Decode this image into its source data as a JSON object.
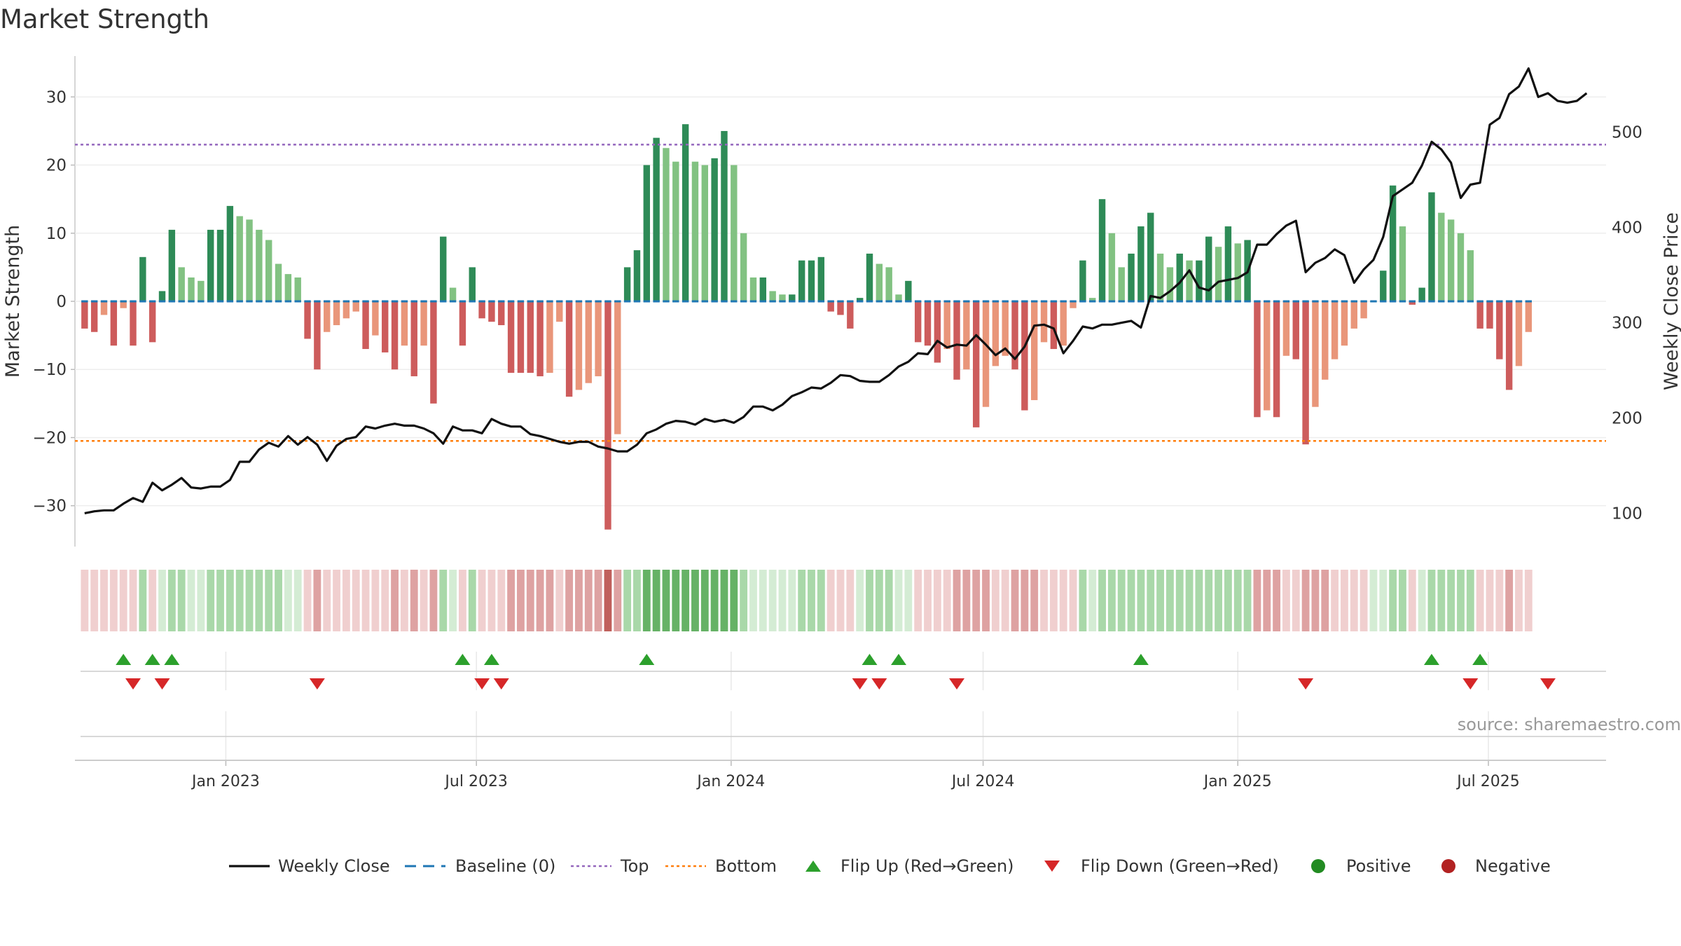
{
  "title": "Market Strength",
  "source": "source: sharemaestro.com",
  "chart_data": {
    "type": "bar",
    "ylabel_left": "Market Strength",
    "ylabel_right": "Weekly Close Price",
    "ylim_left": [
      -36,
      36
    ],
    "ylim_right": [
      65,
      580
    ],
    "left_ticks": [
      "−30",
      "−20",
      "−10",
      "0",
      "10",
      "20",
      "30"
    ],
    "left_tick_values": [
      -30,
      -20,
      -10,
      0,
      10,
      20,
      30
    ],
    "right_ticks": [
      "100",
      "200",
      "300",
      "400",
      "500"
    ],
    "right_tick_values": [
      100,
      200,
      300,
      400,
      500
    ],
    "x_ticks": [
      "Jan 2023",
      "Jul 2023",
      "Jan 2024",
      "Jul 2024",
      "Jan 2025",
      "Jul 2025"
    ],
    "x_tick_dates": [
      "2023-01-01",
      "2023-07-01",
      "2024-01-01",
      "2024-07-01",
      "2025-01-01",
      "2025-07-01"
    ],
    "x_range": [
      "2022-09-14",
      "2025-09-24"
    ],
    "first_week": "2022-09-21",
    "week_step_days": 7,
    "top_threshold": 23,
    "bottom_threshold": -20.5,
    "strength": [
      -4,
      -4.5,
      -2,
      -6.5,
      -1,
      -6.5,
      6.5,
      -6,
      1.5,
      10.5,
      5,
      3.5,
      3,
      10.5,
      10.5,
      14,
      12.5,
      12,
      10.5,
      9,
      5.5,
      4,
      3.5,
      -5.5,
      -10,
      -4.5,
      -3.5,
      -2.5,
      -1.5,
      -7,
      -5,
      -7.5,
      -10,
      -6.5,
      -11,
      -6.5,
      -15,
      9.5,
      2,
      -6.5,
      5,
      -2.5,
      -3,
      -3.5,
      -10.5,
      -10.5,
      -10.5,
      -11,
      -10.5,
      -3,
      -14,
      -13,
      -12,
      -11,
      -33.5,
      -19.5,
      5,
      7.5,
      20,
      24,
      22.5,
      20.5,
      26,
      20.5,
      20,
      21,
      25,
      20,
      10,
      3.5,
      3.5,
      1.5,
      1,
      1,
      6,
      6,
      6.5,
      -1.5,
      -2,
      -4,
      0.5,
      7,
      5.5,
      5,
      1,
      3,
      -6,
      -6.5,
      -9,
      -7,
      -11.5,
      -10,
      -18.5,
      -15.5,
      -9.5,
      -8,
      -10,
      -16,
      -14.5,
      -6,
      -7,
      -6.5,
      -1,
      6,
      0.5,
      15,
      10,
      5,
      7,
      11,
      13,
      7,
      5,
      7,
      6,
      6,
      9.5,
      8,
      11,
      8.5,
      9,
      -17,
      -16,
      -17,
      -8,
      -8.5,
      -21,
      -15.5,
      -11.5,
      -8.5,
      -6.5,
      -4,
      -2.5,
      0,
      4.5,
      17,
      11,
      -0.5,
      2,
      16,
      13,
      12,
      10,
      7.5,
      -4,
      -4,
      -8.5,
      -13,
      -9.5,
      -4.5
    ],
    "weekly_close": [
      100,
      102,
      103,
      103,
      110,
      116,
      112,
      132,
      124,
      130,
      137,
      127,
      126,
      128,
      128,
      135,
      154,
      154,
      167,
      174,
      170,
      181,
      172,
      180,
      172,
      155,
      171,
      178,
      180,
      191,
      189,
      192,
      194,
      192,
      192,
      189,
      184,
      173,
      191,
      187,
      187,
      184,
      199,
      194,
      191,
      191,
      183,
      181,
      178,
      175,
      173,
      175,
      175,
      170,
      168,
      165,
      165,
      172,
      184,
      188,
      194,
      197,
      196,
      193,
      199,
      196,
      198,
      195,
      201,
      212,
      212,
      208,
      214,
      223,
      227,
      232,
      231,
      237,
      245,
      244,
      239,
      238,
      238,
      245,
      254,
      259,
      268,
      267,
      281,
      274,
      277,
      276,
      287,
      277,
      266,
      273,
      262,
      275,
      297,
      298,
      294,
      268,
      281,
      296,
      294,
      298,
      298,
      300,
      302,
      295,
      328,
      326,
      333,
      342,
      355,
      337,
      334,
      343,
      345,
      347,
      353,
      382,
      382,
      393,
      402,
      407,
      353,
      363,
      368,
      377,
      371,
      342,
      356,
      366,
      390,
      433,
      440,
      447,
      465,
      490,
      482,
      468,
      431,
      445,
      447,
      508,
      515,
      540,
      548,
      567,
      537,
      541,
      533,
      531,
      533,
      541
    ],
    "flip_up_index": [
      4,
      7,
      9,
      39,
      42,
      58,
      81,
      84,
      109,
      139,
      144
    ],
    "flip_down_index": [
      5,
      8,
      24,
      41,
      43,
      80,
      82,
      90,
      126,
      143,
      151
    ],
    "legend": [
      "Weekly Close",
      "Baseline (0)",
      "Top",
      "Bottom",
      "Flip Up (Red→Green)",
      "Flip Down (Green→Red)",
      "Positive",
      "Negative"
    ],
    "colors": {
      "positive_strong": "#2e8b57",
      "positive_weak": "#82c282",
      "negative_strong": "#cd5c5c",
      "negative_weak": "#e9967a",
      "price_line": "#111111",
      "baseline": "#1f77b4",
      "top": "#9467bd",
      "bottom": "#ff7f0e",
      "flip_up": "#2ca02c",
      "flip_down": "#d62728",
      "dot_positive": "#228b22",
      "dot_negative": "#b22222",
      "strip_pos_light": "#d4ecd4",
      "strip_pos_mid": "#a9d8a9",
      "strip_pos_dark": "#66b266",
      "strip_neg_light": "#f0cfcf",
      "strip_neg_mid": "#dea2a2",
      "strip_neg_dark": "#c0605c"
    }
  }
}
